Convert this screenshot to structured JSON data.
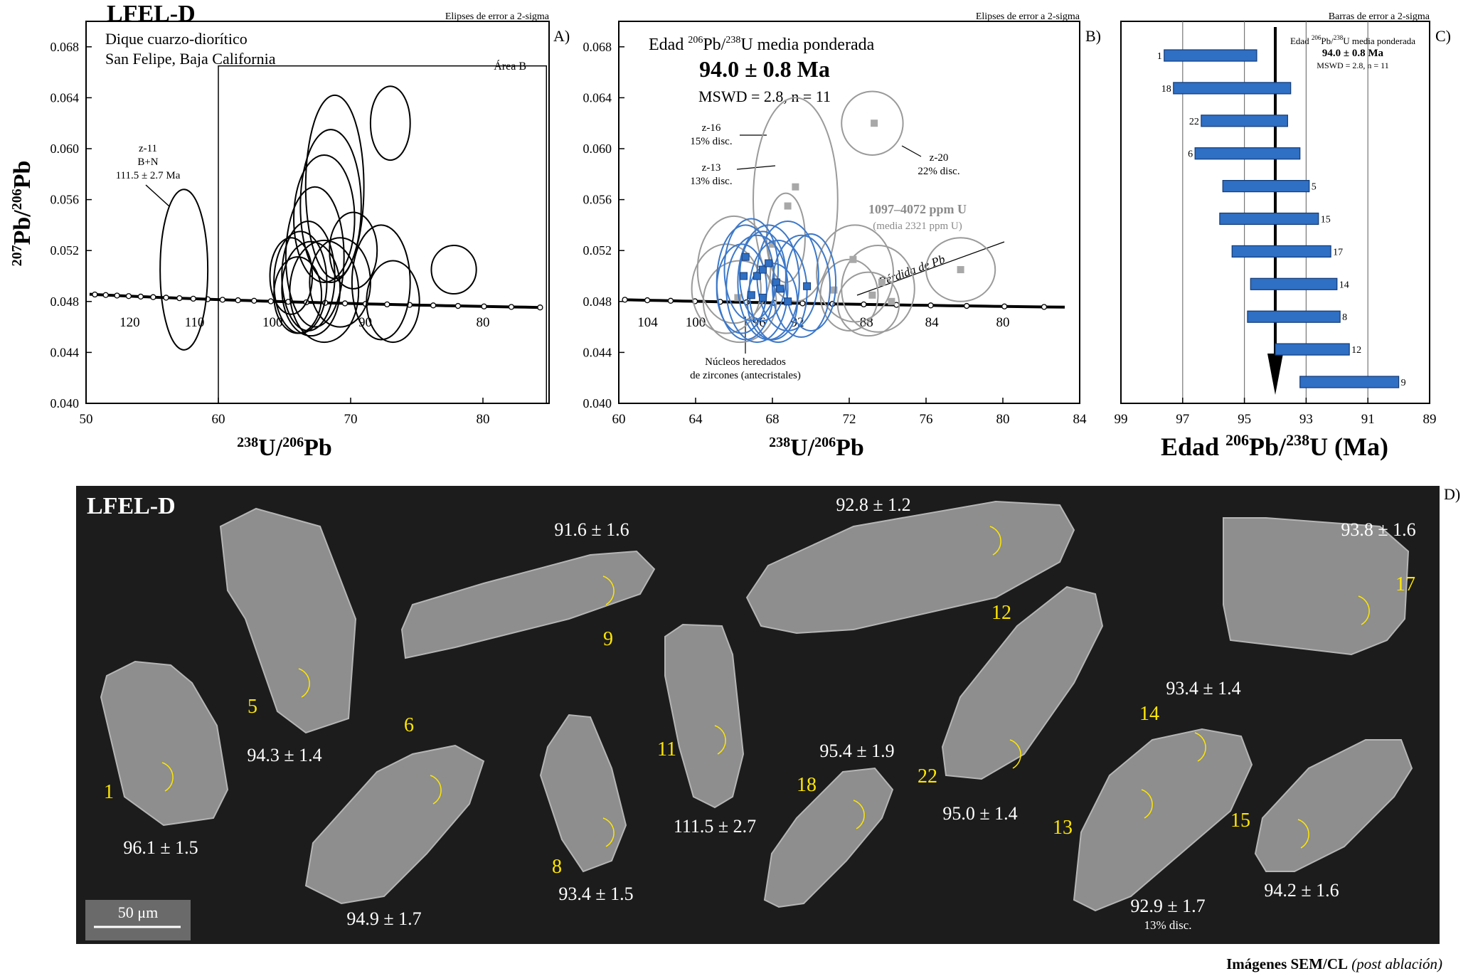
{
  "figure": {
    "sample": "LFEL-D",
    "footer_bold": "Imágenes SEM/CL",
    "footer_italic": "(post ablación)"
  },
  "colors": {
    "blue": "#3d78c8",
    "blue_fill": "#2f6fc4",
    "gray": "#9a9a9a",
    "panel_dark": "#1c1c1c",
    "yellow": "#ffe600"
  },
  "chart_data": [
    {
      "id": "A",
      "type": "scatter",
      "panel_letter": "A)",
      "corner_note": "Elipses de error a 2-sigma",
      "title_lines": [
        "Dique cuarzo-diorítico",
        "San Felipe, Baja California"
      ],
      "xlabel_parts": [
        "238",
        "U/",
        "206",
        "Pb"
      ],
      "ylabel_parts": [
        "207",
        "Pb/",
        "206",
        "Pb"
      ],
      "xlim": [
        50,
        85
      ],
      "ylim": [
        0.04,
        0.07
      ],
      "xticks": [
        50,
        60,
        70,
        80
      ],
      "yticks": [
        "0.040",
        "0.044",
        "0.048",
        "0.052",
        "0.056",
        "0.060",
        "0.064",
        "0.068"
      ],
      "area_label": "Área B",
      "area_box": {
        "x": [
          60,
          84.8
        ],
        "y": [
          0.04,
          0.0665
        ]
      },
      "concordia_labels": [
        {
          "x": 53.3,
          "text": "120"
        },
        {
          "x": 58.2,
          "text": "110"
        },
        {
          "x": 64.1,
          "text": "100"
        },
        {
          "x": 71.1,
          "text": "90"
        },
        {
          "x": 80.0,
          "text": "80"
        }
      ],
      "annotation": {
        "lines": [
          "z-11",
          "B+N",
          "111.5 ± 2.7 Ma"
        ]
      },
      "ellipses": [
        {
          "cx": 57.4,
          "cy": 0.0505,
          "rx": 1.8,
          "ry": 0.0063
        },
        {
          "cx": 73.0,
          "cy": 0.062,
          "rx": 1.5,
          "ry": 0.0029
        },
        {
          "cx": 68.8,
          "cy": 0.057,
          "rx": 2.2,
          "ry": 0.0072
        },
        {
          "cx": 68.5,
          "cy": 0.0555,
          "rx": 2.3,
          "ry": 0.006
        },
        {
          "cx": 68.0,
          "cy": 0.0545,
          "rx": 2.3,
          "ry": 0.005
        },
        {
          "cx": 67.3,
          "cy": 0.0515,
          "rx": 2.2,
          "ry": 0.0055
        },
        {
          "cx": 66.8,
          "cy": 0.05,
          "rx": 2.0,
          "ry": 0.0043
        },
        {
          "cx": 66.2,
          "cy": 0.0495,
          "rx": 2.0,
          "ry": 0.004
        },
        {
          "cx": 67.0,
          "cy": 0.049,
          "rx": 2.2,
          "ry": 0.0037
        },
        {
          "cx": 68.0,
          "cy": 0.0488,
          "rx": 2.6,
          "ry": 0.004
        },
        {
          "cx": 69.2,
          "cy": 0.0495,
          "rx": 2.3,
          "ry": 0.0035
        },
        {
          "cx": 66.0,
          "cy": 0.0485,
          "rx": 1.8,
          "ry": 0.003
        },
        {
          "cx": 72.3,
          "cy": 0.0495,
          "rx": 2.2,
          "ry": 0.0045
        },
        {
          "cx": 73.2,
          "cy": 0.048,
          "rx": 2.0,
          "ry": 0.0032
        },
        {
          "cx": 77.8,
          "cy": 0.0505,
          "rx": 1.7,
          "ry": 0.0019
        },
        {
          "cx": 65.5,
          "cy": 0.05,
          "rx": 1.6,
          "ry": 0.003
        },
        {
          "cx": 70.2,
          "cy": 0.052,
          "rx": 1.8,
          "ry": 0.003
        }
      ]
    },
    {
      "id": "B",
      "type": "scatter",
      "panel_letter": "B)",
      "corner_note": "Elipses de error a 2-sigma",
      "title_prefix": "Edad ",
      "title_sup1": "206",
      "title_mid": "Pb/",
      "title_sup2": "238",
      "title_suffix": "U media ponderada",
      "age": "94.0 ± 0.8 Ma",
      "mswd": "MSWD = 2.8, n = 11",
      "xlabel_parts": [
        "238",
        "U/",
        "206",
        "Pb"
      ],
      "xlim": [
        60,
        84
      ],
      "ylim": [
        0.04,
        0.07
      ],
      "xticks": [
        60,
        64,
        68,
        72,
        76,
        80,
        84
      ],
      "yticks": [
        "0.040",
        "0.044",
        "0.048",
        "0.052",
        "0.056",
        "0.060",
        "0.064",
        "0.068"
      ],
      "concordia_labels": [
        {
          "x": 61.5,
          "text": "104"
        },
        {
          "x": 64.0,
          "text": "100"
        },
        {
          "x": 67.3,
          "text": "96"
        },
        {
          "x": 69.3,
          "text": "92"
        },
        {
          "x": 72.9,
          "text": "88"
        },
        {
          "x": 76.3,
          "text": "84"
        },
        {
          "x": 80.0,
          "text": "80"
        }
      ],
      "annotations": [
        {
          "lines": [
            "z-16",
            "15% disc."
          ]
        },
        {
          "lines": [
            "z-13",
            "13% disc."
          ]
        },
        {
          "lines": [
            "z-20",
            "22% disc."
          ]
        },
        {
          "lines": [
            "Núcleos heredados",
            "de zircones (antecristales)"
          ]
        }
      ],
      "ppm_bold": "1097–4072 ppm U",
      "ppm_note": "(media 2321 ppm U)",
      "pb_loss": "Pérdida de Pb",
      "blue_ellipses": [
        {
          "cx": 66.6,
          "cy": 0.0495,
          "rx": 1.5,
          "ry": 0.0045
        },
        {
          "cx": 67.2,
          "cy": 0.049,
          "rx": 1.6,
          "ry": 0.0042
        },
        {
          "cx": 67.8,
          "cy": 0.0495,
          "rx": 1.6,
          "ry": 0.0045
        },
        {
          "cx": 68.3,
          "cy": 0.0488,
          "rx": 1.5,
          "ry": 0.004
        },
        {
          "cx": 66.9,
          "cy": 0.0505,
          "rx": 1.4,
          "ry": 0.004
        },
        {
          "cx": 68.8,
          "cy": 0.05,
          "rx": 1.6,
          "ry": 0.0043
        },
        {
          "cx": 67.5,
          "cy": 0.05,
          "rx": 1.2,
          "ry": 0.0035
        },
        {
          "cx": 66.4,
          "cy": 0.049,
          "rx": 1.3,
          "ry": 0.0035
        },
        {
          "cx": 69.5,
          "cy": 0.0492,
          "rx": 1.5,
          "ry": 0.004
        },
        {
          "cx": 68.0,
          "cy": 0.048,
          "rx": 1.3,
          "ry": 0.003
        },
        {
          "cx": 70.0,
          "cy": 0.0495,
          "rx": 1.3,
          "ry": 0.0038
        }
      ],
      "blue_points": [
        {
          "x": 66.6,
          "y": 0.0515
        },
        {
          "x": 67.2,
          "y": 0.05
        },
        {
          "x": 67.5,
          "y": 0.0505
        },
        {
          "x": 67.8,
          "y": 0.051
        },
        {
          "x": 68.2,
          "y": 0.0495
        },
        {
          "x": 66.9,
          "y": 0.0485
        },
        {
          "x": 68.4,
          "y": 0.049
        },
        {
          "x": 67.5,
          "y": 0.0483
        },
        {
          "x": 68.8,
          "y": 0.048
        },
        {
          "x": 69.8,
          "y": 0.0492
        },
        {
          "x": 66.5,
          "y": 0.05
        }
      ],
      "gray_ellipses": [
        {
          "cx": 69.2,
          "cy": 0.056,
          "rx": 2.2,
          "ry": 0.008
        },
        {
          "cx": 73.2,
          "cy": 0.062,
          "rx": 1.6,
          "ry": 0.0025
        },
        {
          "cx": 66.0,
          "cy": 0.0505,
          "rx": 1.9,
          "ry": 0.0042
        },
        {
          "cx": 65.6,
          "cy": 0.049,
          "rx": 1.8,
          "ry": 0.0035
        },
        {
          "cx": 66.3,
          "cy": 0.048,
          "rx": 1.9,
          "ry": 0.0032
        },
        {
          "cx": 72.3,
          "cy": 0.0502,
          "rx": 2.0,
          "ry": 0.0038
        },
        {
          "cx": 73.5,
          "cy": 0.049,
          "rx": 1.9,
          "ry": 0.0034
        },
        {
          "cx": 73.0,
          "cy": 0.0478,
          "rx": 1.6,
          "ry": 0.0025
        },
        {
          "cx": 77.8,
          "cy": 0.0505,
          "rx": 1.8,
          "ry": 0.0025
        },
        {
          "cx": 72.0,
          "cy": 0.0485,
          "rx": 1.5,
          "ry": 0.0028
        },
        {
          "cx": 68.7,
          "cy": 0.053,
          "rx": 1.0,
          "ry": 0.0035
        }
      ],
      "gray_points": [
        {
          "x": 73.3,
          "y": 0.062
        },
        {
          "x": 69.2,
          "y": 0.057
        },
        {
          "x": 68.8,
          "y": 0.0555
        },
        {
          "x": 72.2,
          "y": 0.0513
        },
        {
          "x": 73.7,
          "y": 0.0495
        },
        {
          "x": 73.2,
          "y": 0.0485
        },
        {
          "x": 74.2,
          "y": 0.048
        },
        {
          "x": 77.8,
          "y": 0.0505
        },
        {
          "x": 71.2,
          "y": 0.0489
        },
        {
          "x": 66.2,
          "y": 0.0483
        },
        {
          "x": 68.0,
          "y": 0.0525
        }
      ]
    },
    {
      "id": "C",
      "type": "bar",
      "panel_letter": "C)",
      "corner_note": "Barras de error a 2-sigma",
      "title_prefix": "Edad ",
      "title_sup1": "206",
      "title_mid": "Pb/",
      "title_sup2": "238",
      "title_suffix": "U media ponderada",
      "age": "94.0 ± 0.8 Ma",
      "mswd": "MSWD = 2.8, n = 11",
      "xlabel_prefix": "Edad ",
      "xlabel_sup1": "206",
      "xlabel_mid": "Pb/",
      "xlabel_sup2": "238",
      "xlabel_suffix": "U (Ma)",
      "xlim": [
        99,
        89
      ],
      "xticks": [
        99,
        97,
        95,
        93,
        91,
        89
      ],
      "mean": 94.0,
      "categories": [
        "1",
        "18",
        "22",
        "6",
        "5",
        "15",
        "17",
        "14",
        "8",
        "12",
        "9"
      ],
      "values": [
        96.1,
        95.4,
        95.0,
        94.9,
        94.3,
        94.2,
        93.8,
        93.4,
        93.4,
        92.8,
        91.6
      ],
      "errors": [
        1.5,
        1.9,
        1.4,
        1.7,
        1.4,
        1.6,
        1.6,
        1.4,
        1.5,
        1.2,
        1.6
      ]
    }
  ],
  "sem_panel": {
    "title": "LFEL-D",
    "panel_letter": "D)",
    "scale_label": "50 μm",
    "grains": [
      {
        "num": "1",
        "age": "96.1 ± 1.5"
      },
      {
        "num": "5",
        "age": "94.3 ± 1.4"
      },
      {
        "num": "6",
        "age": "94.9 ± 1.7"
      },
      {
        "num": "9",
        "age": "91.6 ± 1.6"
      },
      {
        "num": "8",
        "age": "93.4 ± 1.5"
      },
      {
        "num": "11",
        "age": "111.5 ± 2.7"
      },
      {
        "num": "12",
        "age": "92.8 ± 1.2"
      },
      {
        "num": "18",
        "age": "95.4 ± 1.9"
      },
      {
        "num": "22",
        "age": "95.0 ± 1.4"
      },
      {
        "num": "14",
        "age": "93.4 ± 1.4"
      },
      {
        "num": "13",
        "age": "92.9 ± 1.7",
        "note": "13% disc."
      },
      {
        "num": "17",
        "age": "93.8 ± 1.6"
      },
      {
        "num": "15",
        "age": "94.2 ± 1.6"
      }
    ]
  }
}
